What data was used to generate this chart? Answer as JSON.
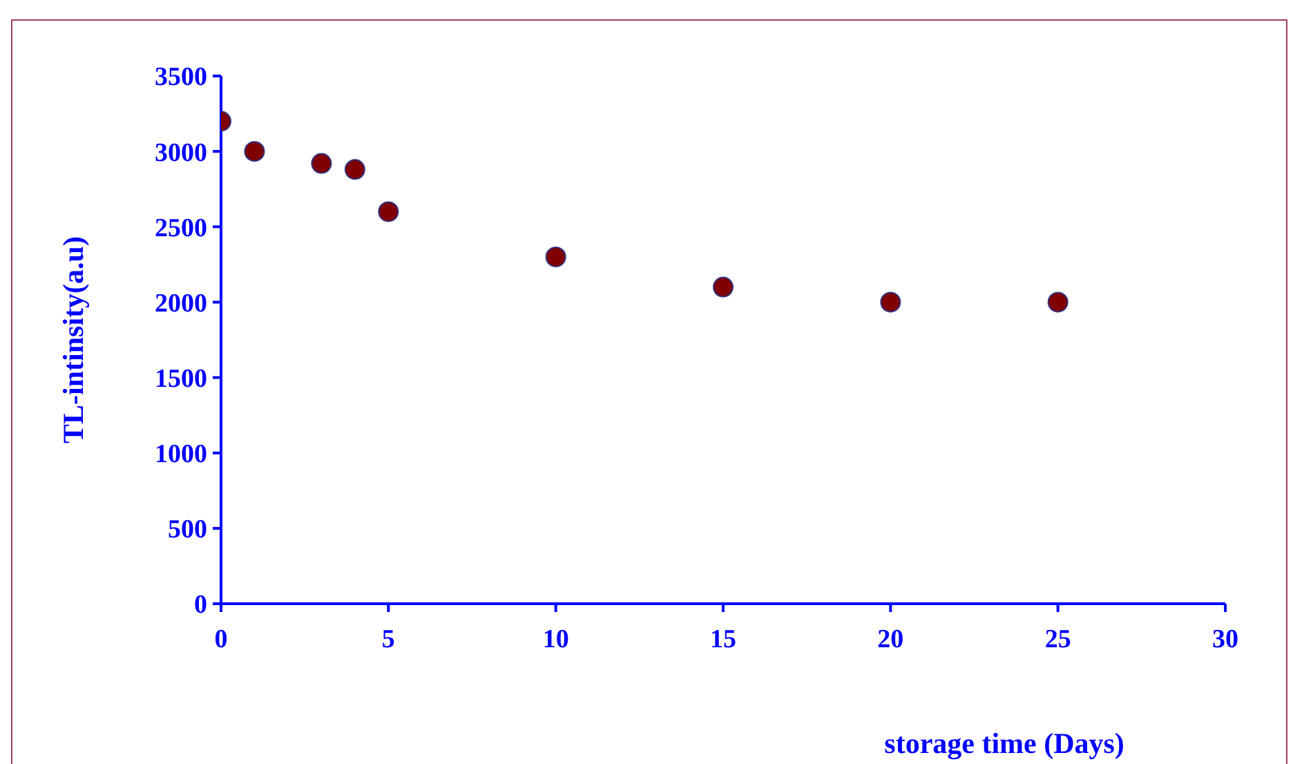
{
  "chart_data": {
    "type": "scatter",
    "xlabel": "storage time (Days)",
    "ylabel": "TL-intinsity(a.u)",
    "x": [
      0,
      1,
      3,
      4,
      5,
      10,
      15,
      20,
      25
    ],
    "series": [
      {
        "color": "#800000",
        "values": [
          3200,
          3000,
          2920,
          2880,
          2600,
          2300,
          2100,
          2000,
          2000
        ]
      }
    ],
    "xlim": [
      0,
      30
    ],
    "xticks": [
      0,
      5,
      10,
      15,
      20,
      25,
      30
    ],
    "ylim": [
      0,
      3500
    ],
    "yticks": [
      0,
      500,
      1000,
      1500,
      2000,
      2500,
      3000,
      3500
    ],
    "grid": false,
    "legend": false,
    "marker": "circle"
  }
}
